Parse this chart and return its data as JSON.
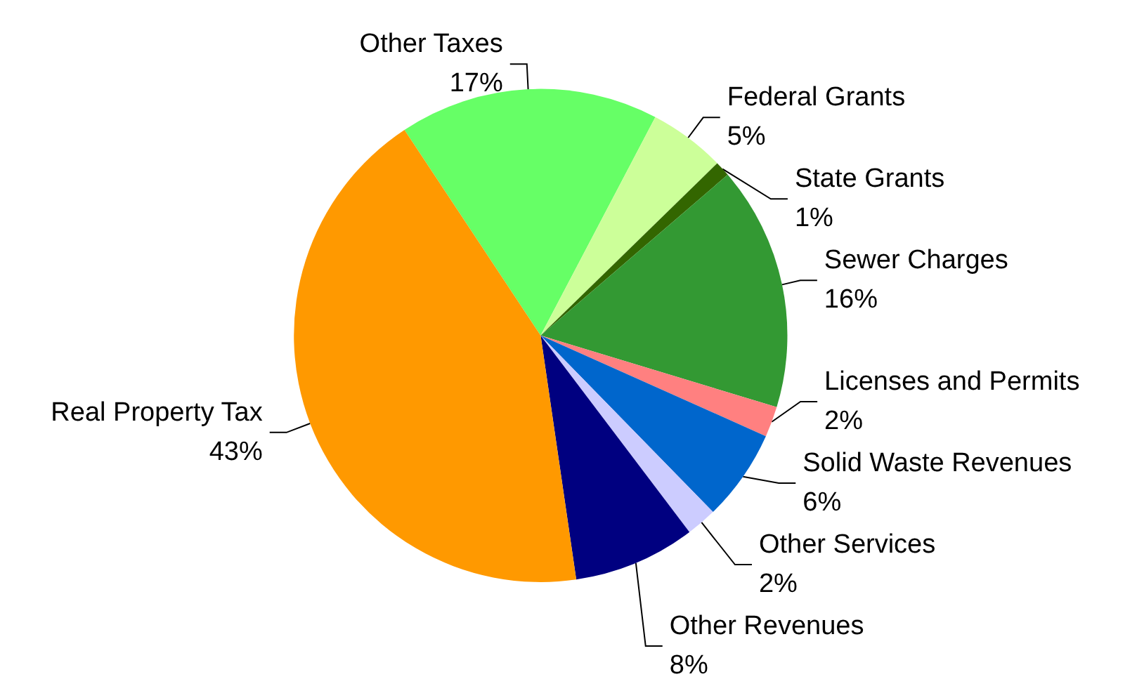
{
  "chart_data": {
    "type": "pie",
    "categories": [
      "Other Taxes",
      "Federal Grants",
      "State Grants",
      "Sewer Charges",
      "Licenses and Permits",
      "Solid Waste Revenues",
      "Other Services",
      "Other Revenues",
      "Real Property Tax"
    ],
    "values": [
      17,
      5,
      1,
      16,
      2,
      6,
      2,
      8,
      43
    ],
    "colors": [
      "#66ff66",
      "#ccff99",
      "#336600",
      "#339933",
      "#ff8080",
      "#0066cc",
      "#ccccff",
      "#000080",
      "#ff9900"
    ],
    "value_labels": [
      "17%",
      "5%",
      "1%",
      "16%",
      "2%",
      "6%",
      "2%",
      "8%",
      "43%"
    ],
    "legend": false
  }
}
